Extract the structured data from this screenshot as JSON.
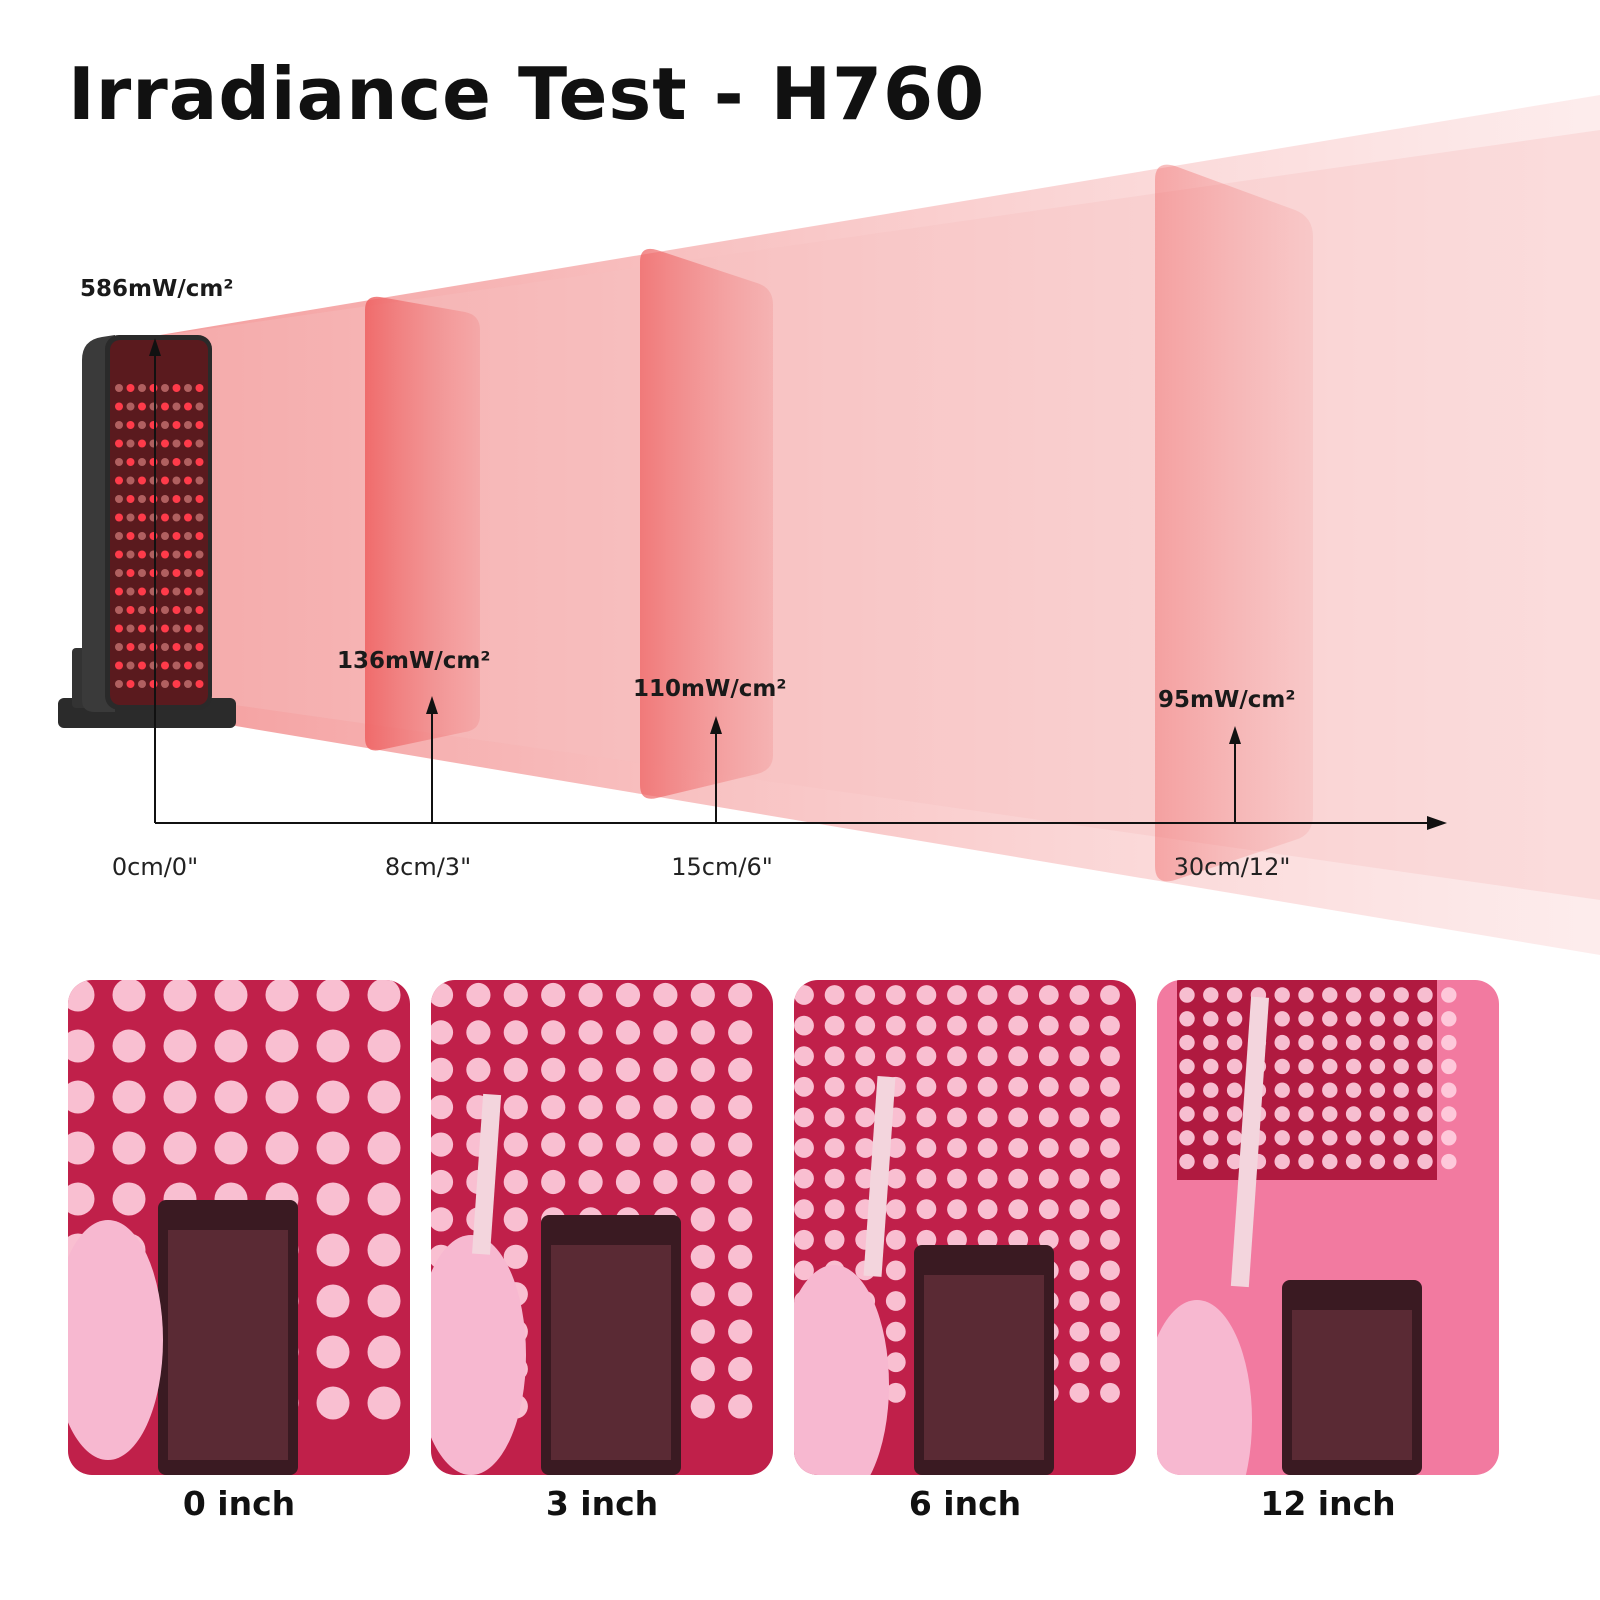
{
  "title": "Irradiance Test - H760",
  "colors": {
    "beam": "#f08080",
    "panel": "#e85a5a",
    "photo_glow": "#ff3d7f",
    "axis": "#111111"
  },
  "measurements": [
    {
      "distance_label": "0cm/0\"",
      "irradiance": "586mW/cm²"
    },
    {
      "distance_label": "8cm/3\"",
      "irradiance": "136mW/cm²"
    },
    {
      "distance_label": "15cm/6\"",
      "irradiance": "110mW/cm²"
    },
    {
      "distance_label": "30cm/12\"",
      "irradiance": "95mW/cm²"
    }
  ],
  "photos": [
    {
      "caption": "0 inch"
    },
    {
      "caption": "3 inch"
    },
    {
      "caption": "6 inch"
    },
    {
      "caption": "12 inch"
    }
  ]
}
